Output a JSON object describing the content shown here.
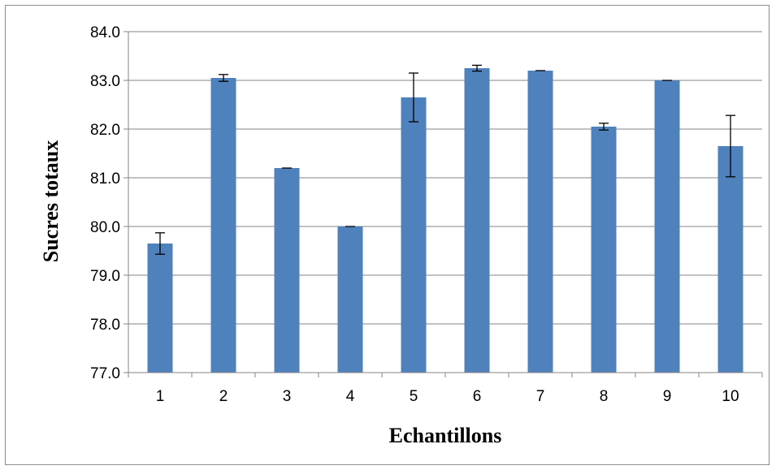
{
  "chart_data": {
    "type": "bar",
    "title": "",
    "xlabel": "Echantillons",
    "ylabel": "Sucres totaux",
    "categories": [
      "1",
      "2",
      "3",
      "4",
      "5",
      "6",
      "7",
      "8",
      "9",
      "10"
    ],
    "values": [
      79.65,
      83.05,
      81.2,
      80.0,
      82.65,
      83.25,
      83.2,
      82.05,
      83.0,
      81.65
    ],
    "error": [
      0.22,
      0.07,
      0.0,
      0.0,
      0.5,
      0.06,
      0.0,
      0.07,
      0.0,
      0.63
    ],
    "ylim": [
      77.0,
      84.0
    ],
    "yticks": [
      "77.0",
      "78.0",
      "79.0",
      "80.0",
      "81.0",
      "82.0",
      "83.0",
      "84.0"
    ],
    "grid": true,
    "legend": "none",
    "bar_color": "#4f81bd",
    "grid_color": "#868686"
  }
}
